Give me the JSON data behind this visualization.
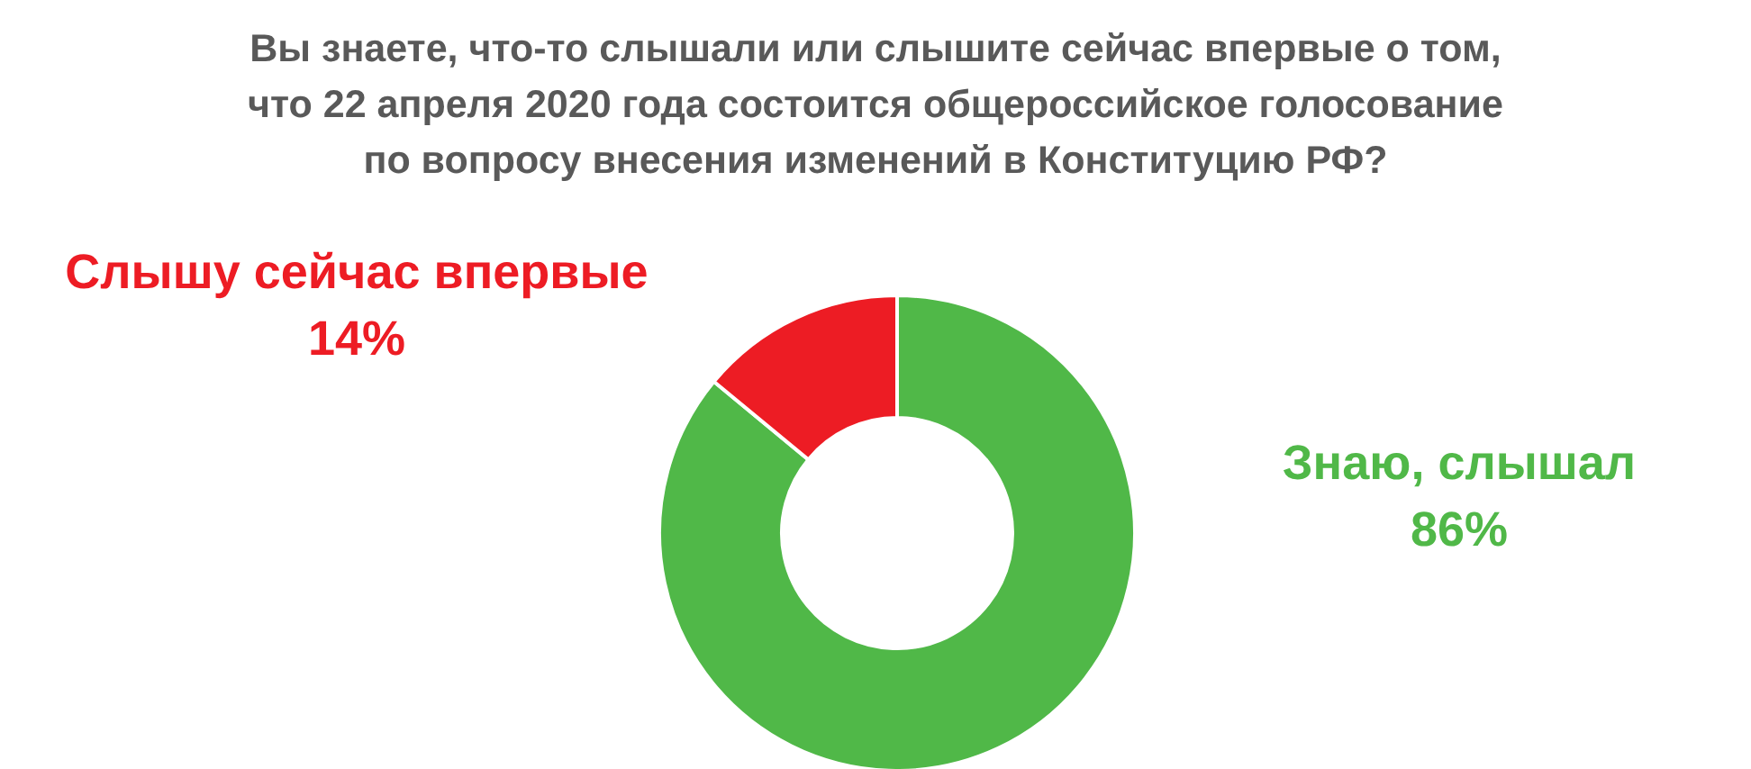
{
  "chart_data": {
    "type": "donut",
    "title": "Вы знаете, что-то слышали или слышите сейчас впервые о том,\nчто 22 апреля 2020 года состоится общероссийское голосование\nпо вопросу внесения изменений в Конституцию РФ?",
    "categories": [
      "Знаю, слышал",
      "Слышу сейчас впервые"
    ],
    "values": [
      86,
      14
    ],
    "colors": [
      "#50b848",
      "#ed1c24"
    ],
    "value_labels": [
      "86%",
      "14%"
    ]
  }
}
